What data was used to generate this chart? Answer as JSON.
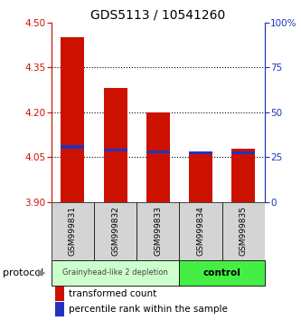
{
  "title": "GDS5113 / 10541260",
  "samples": [
    "GSM999831",
    "GSM999832",
    "GSM999833",
    "GSM999834",
    "GSM999835"
  ],
  "transformed_counts": [
    4.45,
    4.28,
    4.2,
    4.07,
    4.08
  ],
  "percentile_ranks": [
    4.085,
    4.075,
    4.068,
    4.065,
    4.065
  ],
  "bar_bottom": 3.9,
  "ylim": [
    3.9,
    4.5
  ],
  "yticks": [
    3.9,
    4.05,
    4.2,
    4.35,
    4.5
  ],
  "y2ticks": [
    0,
    25,
    50,
    75,
    100
  ],
  "y2lim": [
    0,
    100
  ],
  "bar_color": "#cc1100",
  "blue_color": "#2233bb",
  "group1_label": "Grainyhead-like 2 depletion",
  "group2_label": "control",
  "group1_color": "#ccffcc",
  "group2_color": "#44ee44",
  "group1_indices": [
    0,
    1,
    2
  ],
  "group2_indices": [
    3,
    4
  ],
  "protocol_label": "protocol",
  "legend_red": "transformed count",
  "legend_blue": "percentile rank within the sample",
  "bar_width": 0.55,
  "title_fontsize": 10,
  "tick_fontsize": 7.5,
  "sample_fontsize": 6.5,
  "legend_fontsize": 7.5
}
